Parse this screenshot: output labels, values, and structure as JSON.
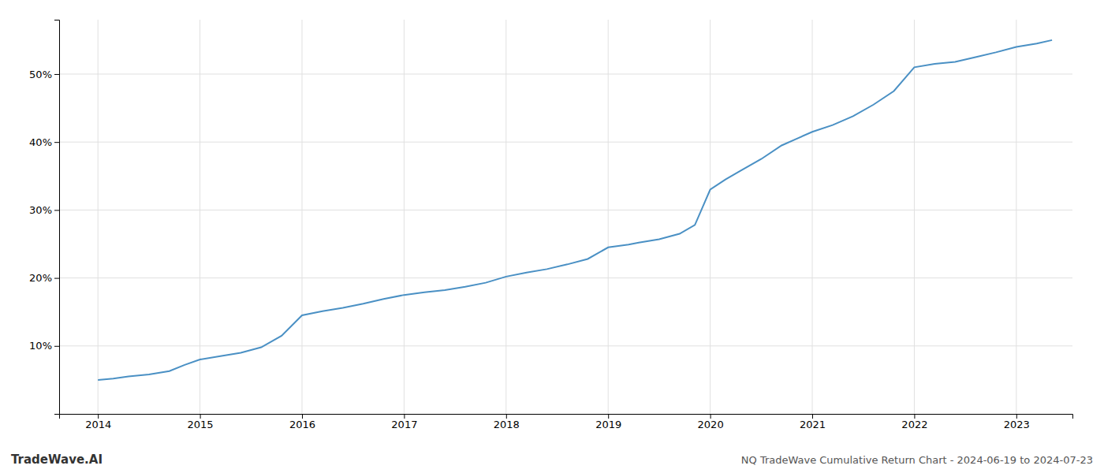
{
  "chart_data": {
    "type": "line",
    "title": "NQ TradeWave Cumulative Return Chart - 2024-06-19 to 2024-07-23",
    "annotations": [
      "TradeWave.AI"
    ],
    "color": "#4a90c4",
    "grid": true,
    "x": [
      2014.0,
      2014.15,
      2014.3,
      2014.5,
      2014.7,
      2014.85,
      2015.0,
      2015.2,
      2015.4,
      2015.6,
      2015.8,
      2016.0,
      2016.2,
      2016.4,
      2016.6,
      2016.8,
      2017.0,
      2017.2,
      2017.4,
      2017.6,
      2017.8,
      2018.0,
      2018.2,
      2018.4,
      2018.6,
      2018.8,
      2019.0,
      2019.1,
      2019.2,
      2019.3,
      2019.5,
      2019.7,
      2019.85,
      2020.0,
      2020.15,
      2020.3,
      2020.5,
      2020.7,
      2020.85,
      2021.0,
      2021.2,
      2021.4,
      2021.6,
      2021.8,
      2022.0,
      2022.2,
      2022.4,
      2022.6,
      2022.8,
      2023.0,
      2023.2,
      2023.35
    ],
    "values": [
      5.0,
      5.2,
      5.5,
      5.8,
      6.3,
      7.2,
      8.0,
      8.5,
      9.0,
      9.8,
      11.5,
      14.5,
      15.1,
      15.6,
      16.2,
      16.9,
      17.5,
      17.9,
      18.2,
      18.7,
      19.3,
      20.2,
      20.8,
      21.3,
      22.0,
      22.8,
      24.5,
      24.7,
      24.9,
      25.2,
      25.7,
      26.5,
      27.8,
      33.0,
      34.5,
      35.8,
      37.5,
      39.5,
      40.5,
      41.5,
      42.5,
      43.8,
      45.5,
      47.5,
      51.0,
      51.5,
      51.8,
      52.5,
      53.2,
      54.0,
      54.5,
      55.0
    ],
    "xlim": [
      2013.62,
      2023.55
    ],
    "ylim": [
      0,
      58
    ],
    "xticks": [
      2014,
      2015,
      2016,
      2017,
      2018,
      2019,
      2020,
      2021,
      2022,
      2023
    ],
    "yticks": [
      {
        "value": 10,
        "label": "10%"
      },
      {
        "value": 20,
        "label": "20%"
      },
      {
        "value": 30,
        "label": "30%"
      },
      {
        "value": 40,
        "label": "40%"
      },
      {
        "value": 50,
        "label": "50%"
      }
    ]
  }
}
